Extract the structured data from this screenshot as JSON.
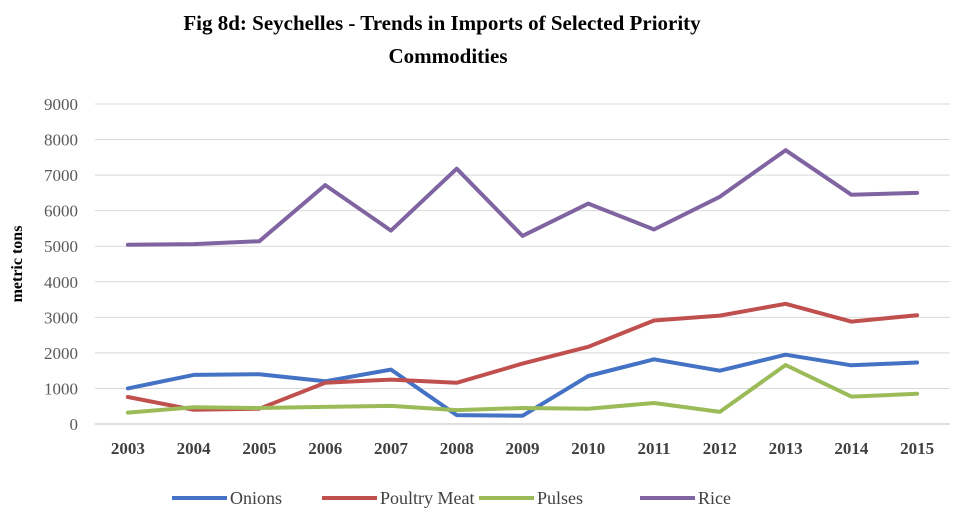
{
  "chart_data": {
    "type": "line",
    "title_line1": "Fig 8d: Seychelles - Trends in Imports of Selected Priority",
    "title_line2": "Commodities",
    "ylabel": "metric tons",
    "xlabel": "",
    "ylim": [
      0,
      9000
    ],
    "yticks": [
      "0",
      "1000",
      "2000",
      "3000",
      "4000",
      "5000",
      "6000",
      "7000",
      "8000",
      "9000"
    ],
    "categories": [
      "2003",
      "2004",
      "2005",
      "2006",
      "2007",
      "2008",
      "2009",
      "2010",
      "2011",
      "2012",
      "2013",
      "2014",
      "2015"
    ],
    "grid": true,
    "legend_position": "bottom",
    "series": [
      {
        "name": "Onions",
        "color": "#4472c4",
        "values": [
          1000,
          1380,
          1400,
          1200,
          1530,
          250,
          230,
          1350,
          1820,
          1500,
          1950,
          1650,
          1730
        ]
      },
      {
        "name": "Poultry Meat",
        "color": "#c0504d",
        "values": [
          760,
          400,
          430,
          1160,
          1250,
          1160,
          1700,
          2170,
          2910,
          3050,
          3380,
          2880,
          3060
        ]
      },
      {
        "name": "Pulses",
        "color": "#9bbb59",
        "values": [
          320,
          470,
          450,
          480,
          510,
          390,
          450,
          430,
          590,
          340,
          1660,
          770,
          850
        ]
      },
      {
        "name": "Rice",
        "color": "#8064a2",
        "values": [
          5040,
          5060,
          5140,
          6720,
          5440,
          7180,
          5290,
          6200,
          5470,
          6390,
          7700,
          6450,
          6500
        ]
      }
    ]
  }
}
